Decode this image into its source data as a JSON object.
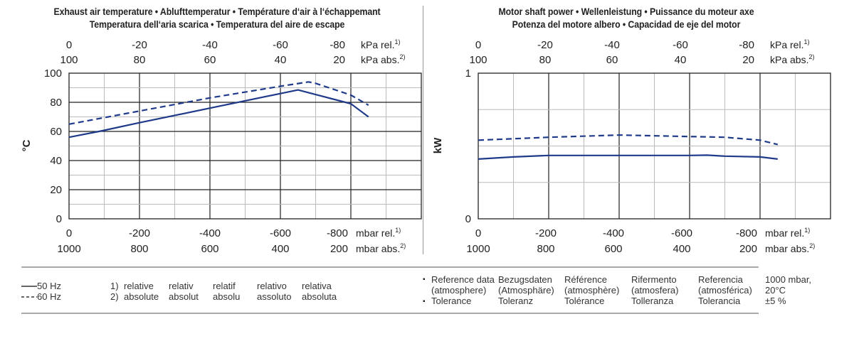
{
  "titles": {
    "left_line1": "Exhaust air temperature  •  Ablufttemperatur  •  Température d‘air à l‘échappemant",
    "left_line2": "Temperatura dell‘aria scarica  •  Temperatura del aire de escape",
    "right_line1": "Motor shaft power  •  Wellenleistung  •  Puissance du moteur axe",
    "right_line2": "Potenza del motore albero  •  Capacidad de eje del motor"
  },
  "axes": {
    "kpa_rel_ticks": [
      "0",
      "-20",
      "-40",
      "-60",
      "-80"
    ],
    "kpa_abs_ticks": [
      "100",
      "80",
      "60",
      "40",
      "20"
    ],
    "kpa_rel_unit": "kPa rel.",
    "kpa_abs_unit": "kPa abs.",
    "mbar_rel_ticks": [
      "0",
      "-200",
      "-400",
      "-600",
      "-800"
    ],
    "mbar_abs_ticks": [
      "1000",
      "800",
      "600",
      "400",
      "200"
    ],
    "mbar_rel_unit": "mbar rel.",
    "mbar_abs_unit": "mbar abs.",
    "sup_rel": "1)",
    "sup_abs": "2)"
  },
  "chart_data": [
    {
      "type": "line",
      "title": "Exhaust air temperature",
      "xlabel": "mbar rel.",
      "ylabel": "°C",
      "xlim": [
        0,
        -1000
      ],
      "ylim": [
        0,
        100
      ],
      "yticks": [
        "0",
        "20",
        "40",
        "60",
        "80",
        "100"
      ],
      "grid": true,
      "series": [
        {
          "name": "50 Hz",
          "style": "solid",
          "color": "#1f3a8a",
          "x": [
            0,
            -85,
            -200,
            -400,
            -600,
            -650,
            -800,
            -850
          ],
          "y": [
            56,
            60,
            66,
            76,
            86,
            88.5,
            79,
            70
          ]
        },
        {
          "name": "60 Hz",
          "style": "dashed",
          "color": "#1f3a8a",
          "x": [
            0,
            -200,
            -400,
            -600,
            -680,
            -700,
            -800,
            -850
          ],
          "y": [
            65,
            74,
            83,
            91,
            94,
            93,
            85,
            78
          ]
        }
      ]
    },
    {
      "type": "line",
      "title": "Motor shaft power",
      "xlabel": "mbar rel.",
      "ylabel": "kW",
      "xlim": [
        0,
        -1000
      ],
      "ylim": [
        0,
        1
      ],
      "yticks": [
        "0",
        "1"
      ],
      "grid": true,
      "series": [
        {
          "name": "50 Hz",
          "style": "solid",
          "color": "#1f3a8a",
          "x": [
            0,
            -100,
            -200,
            -400,
            -600,
            -650,
            -700,
            -800,
            -850
          ],
          "y": [
            0.41,
            0.425,
            0.435,
            0.435,
            0.435,
            0.437,
            0.43,
            0.425,
            0.41
          ]
        },
        {
          "name": "60 Hz",
          "style": "dashed",
          "color": "#1f3a8a",
          "x": [
            0,
            -100,
            -200,
            -400,
            -600,
            -700,
            -800,
            -850
          ],
          "y": [
            0.54,
            0.55,
            0.56,
            0.575,
            0.565,
            0.56,
            0.54,
            0.51
          ]
        }
      ]
    }
  ],
  "legend": {
    "items": [
      {
        "label": "50 Hz",
        "style": "solid"
      },
      {
        "label": "60 Hz",
        "style": "dashed"
      }
    ]
  },
  "footnotes": {
    "numbers": [
      "1)",
      "2)"
    ],
    "columns": [
      [
        "relative",
        "absolute"
      ],
      [
        "relativ",
        "absolut"
      ],
      [
        "relatif",
        "absolu"
      ],
      [
        "relativo",
        "assoluto"
      ],
      [
        "relativa",
        "absoluta"
      ]
    ]
  },
  "reference": {
    "columns": [
      [
        "Reference data",
        "(atmosphere)",
        "Tolerance"
      ],
      [
        "Bezugsdaten",
        "(Atmosphäre)",
        "Toleranz"
      ],
      [
        "Référence",
        "(atmosphère)",
        "Tolérance"
      ],
      [
        "Rifermento",
        "(atmosfera)",
        "Tolleranza"
      ],
      [
        "Referencia",
        "(atmosférica)",
        "Tolerancia"
      ],
      [
        "1000 mbar,",
        "20°C",
        "±5 %"
      ]
    ],
    "bullet": "▪"
  }
}
